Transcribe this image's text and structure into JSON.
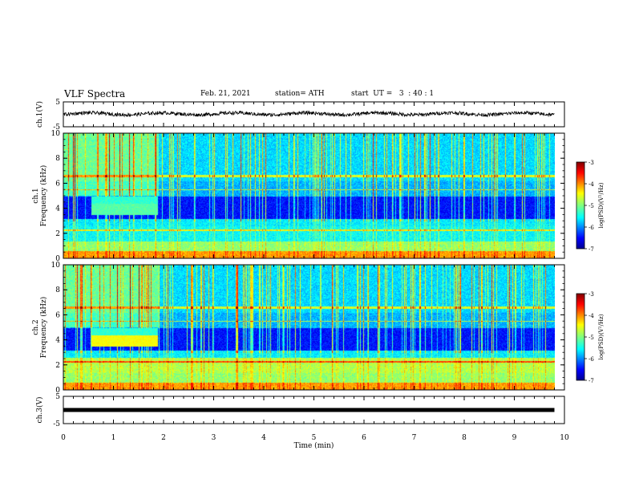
{
  "header": {
    "title": "VLF Spectra",
    "date": "Feb. 21, 2021",
    "station": "station= ATH",
    "start": "start  UT =   3  : 40 : 1"
  },
  "chart_data": [
    {
      "type": "line",
      "panel": "ch1-waveform",
      "ylabel": "ch.1(V)",
      "ylim": [
        -5,
        5
      ],
      "yticks": [
        "5",
        "-5"
      ],
      "xlim": [
        0,
        10
      ]
    },
    {
      "type": "heatmap",
      "panel": "ch1-spectrogram",
      "ylabel_top": "ch.1",
      "ylabel": "Frequency (kHz)",
      "ylim": [
        0,
        10
      ],
      "yticks": [
        "0",
        "2",
        "4",
        "6",
        "8",
        "10"
      ],
      "xlim": [
        0,
        10
      ],
      "data_end_min": 9.8,
      "colorbar": {
        "label": "log(PSD)(V²/Hz)",
        "range": [
          -7,
          -3
        ],
        "ticks": [
          "-3",
          "-4",
          "-5",
          "-6",
          "-7"
        ]
      }
    },
    {
      "type": "heatmap",
      "panel": "ch2-spectrogram",
      "ylabel_top": "ch.2",
      "ylabel": "Frequency (kHz)",
      "ylim": [
        0,
        10
      ],
      "yticks": [
        "0",
        "2",
        "4",
        "6",
        "8",
        "10"
      ],
      "xlim": [
        0,
        10
      ],
      "data_end_min": 9.8,
      "colorbar": {
        "label": "log(PSD)(V²/Hz)",
        "range": [
          -7,
          -3
        ],
        "ticks": [
          "-3",
          "-4",
          "-5",
          "-6",
          "-7"
        ]
      }
    },
    {
      "type": "line",
      "panel": "ch3-waveform",
      "ylabel": "ch.3(V)",
      "ylim": [
        -5,
        5
      ],
      "yticks": [
        "5",
        "-5"
      ],
      "xlim": [
        0,
        10
      ],
      "xlabel": "Time (min)",
      "xticks": [
        "0",
        "1",
        "2",
        "3",
        "4",
        "5",
        "6",
        "7",
        "8",
        "9",
        "10"
      ]
    }
  ],
  "colors": {
    "jet": [
      "#00008f",
      "#0000ff",
      "#0080ff",
      "#00ffff",
      "#80ff80",
      "#ffff00",
      "#ff8000",
      "#ff0000",
      "#800000"
    ],
    "axis": "#000000"
  }
}
